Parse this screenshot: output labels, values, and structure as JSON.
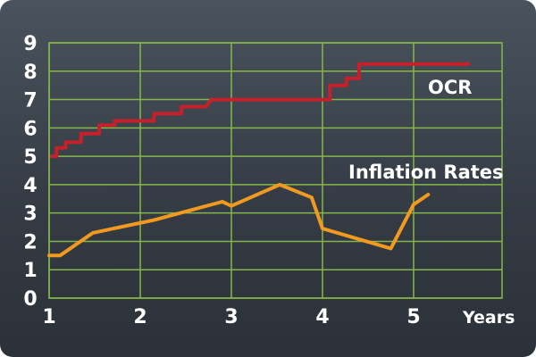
{
  "chart_data": {
    "type": "line",
    "title": "",
    "xlabel": "Years",
    "ylabel": "",
    "xlim": [
      1,
      5
    ],
    "ylim": [
      0,
      9
    ],
    "x_ticks": [
      "1",
      "2",
      "3",
      "4",
      "5"
    ],
    "y_ticks": [
      "0",
      "1",
      "2",
      "3",
      "4",
      "5",
      "6",
      "7",
      "8",
      "9"
    ],
    "grid": true,
    "series": [
      {
        "name": "OCR",
        "color": "#c8202a",
        "points": [
          [
            1.03,
            5.0
          ],
          [
            1.08,
            5.0
          ],
          [
            1.08,
            5.3
          ],
          [
            1.18,
            5.3
          ],
          [
            1.18,
            5.5
          ],
          [
            1.35,
            5.5
          ],
          [
            1.35,
            5.8
          ],
          [
            1.55,
            5.8
          ],
          [
            1.55,
            6.1
          ],
          [
            1.72,
            6.1
          ],
          [
            1.72,
            6.25
          ],
          [
            2.15,
            6.25
          ],
          [
            2.15,
            6.5
          ],
          [
            2.45,
            6.5
          ],
          [
            2.45,
            6.75
          ],
          [
            2.72,
            6.75
          ],
          [
            2.78,
            7.0
          ],
          [
            4.08,
            7.0
          ],
          [
            4.08,
            7.5
          ],
          [
            4.26,
            7.5
          ],
          [
            4.26,
            7.75
          ],
          [
            4.4,
            7.75
          ],
          [
            4.4,
            8.25
          ],
          [
            5.6,
            8.25
          ]
        ]
      },
      {
        "name": "Inflation Rates",
        "color": "#f29a1f",
        "points": [
          [
            1.0,
            1.5
          ],
          [
            1.12,
            1.5
          ],
          [
            1.48,
            2.3
          ],
          [
            2.15,
            2.75
          ],
          [
            2.9,
            3.4
          ],
          [
            3.0,
            3.25
          ],
          [
            3.53,
            4.0
          ],
          [
            3.88,
            3.55
          ],
          [
            4.0,
            2.45
          ],
          [
            4.75,
            1.75
          ],
          [
            5.0,
            3.3
          ],
          [
            5.16,
            3.65
          ]
        ]
      }
    ]
  }
}
